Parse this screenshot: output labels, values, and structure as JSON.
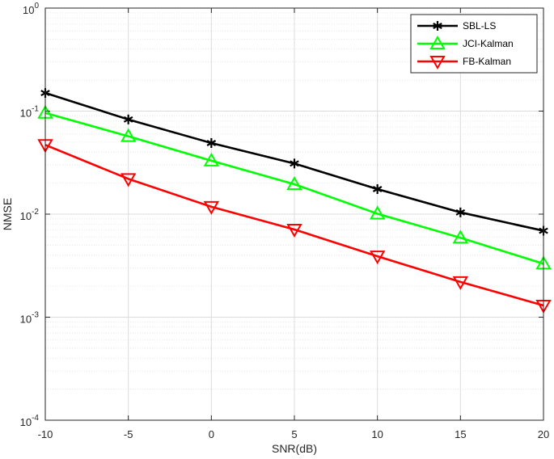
{
  "chart_data": {
    "type": "line",
    "title": "",
    "xlabel": "SNR(dB)",
    "ylabel": "NMSE",
    "y_scale": "log",
    "x": [
      -10,
      -5,
      0,
      5,
      10,
      15,
      20
    ],
    "xlim": [
      -10,
      20
    ],
    "ylim": [
      0.0001,
      1
    ],
    "x_ticks": [
      {
        "value": -10,
        "label": "-10"
      },
      {
        "value": -5,
        "label": "-5"
      },
      {
        "value": 0,
        "label": "0"
      },
      {
        "value": 5,
        "label": "5"
      },
      {
        "value": 10,
        "label": "10"
      },
      {
        "value": 15,
        "label": "15"
      },
      {
        "value": 20,
        "label": "20"
      }
    ],
    "y_ticks": [
      {
        "value": 1,
        "base": "10",
        "exp": "0"
      },
      {
        "value": 0.1,
        "base": "10",
        "exp": "-1"
      },
      {
        "value": 0.01,
        "base": "10",
        "exp": "-2"
      },
      {
        "value": 0.001,
        "base": "10",
        "exp": "-3"
      },
      {
        "value": 0.0001,
        "base": "10",
        "exp": "-4"
      }
    ],
    "grid": true,
    "minor_grid": true,
    "legend_position": "top-right",
    "series": [
      {
        "name": "SBL-LS",
        "color": "#000000",
        "marker": "asterisk",
        "values": [
          0.15,
          0.083,
          0.049,
          0.031,
          0.0175,
          0.0104,
          0.0069
        ]
      },
      {
        "name": "JCI-Kalman",
        "color": "#00ff00",
        "marker": "triangle-up",
        "values": [
          0.096,
          0.057,
          0.033,
          0.0195,
          0.0101,
          0.0059,
          0.0033
        ]
      },
      {
        "name": "FB-Kalman",
        "color": "#ff0000",
        "marker": "triangle-down",
        "values": [
          0.047,
          0.022,
          0.0118,
          0.0071,
          0.0039,
          0.0022,
          0.0013
        ]
      }
    ]
  }
}
